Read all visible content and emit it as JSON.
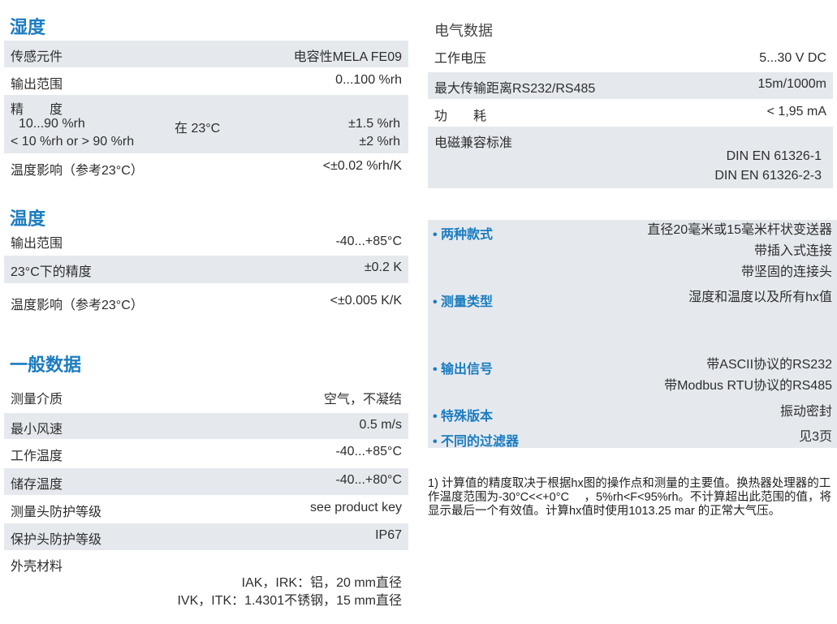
{
  "humidity": {
    "title": "湿度",
    "rows": [
      {
        "label": "传感元件",
        "value": "电容性MELA FE09"
      },
      {
        "label": "输出范围",
        "value": "0...100 %rh"
      },
      {
        "label": "精　　度",
        "sub": [
          {
            "range": "10...90 %rh",
            "cond": "在 23°C",
            "value": "±1.5 %rh"
          },
          {
            "range": "< 10 %rh or > 90 %rh",
            "cond": "",
            "value": "±2 %rh"
          }
        ]
      },
      {
        "label": "温度影响（参考23°C）",
        "value": "<±0.02 %rh/K"
      }
    ]
  },
  "temperature": {
    "title": "温度",
    "rows": [
      {
        "label": "输出范围",
        "value": "-40...+85°C"
      },
      {
        "label": "23°C下的精度",
        "value": "±0.2 K"
      },
      {
        "label": "温度影响（参考23°C）",
        "value": "<±0.005 K/K"
      }
    ]
  },
  "general": {
    "title": "一般数据",
    "rows": [
      {
        "label": "测量介质",
        "value": "空气，不凝结"
      },
      {
        "label": "最小风速",
        "value": "0.5 m/s"
      },
      {
        "label": "工作温度",
        "value": "-40...+85°C"
      },
      {
        "label": "储存温度",
        "value": "-40...+80°C"
      },
      {
        "label": "测量头防护等级",
        "value": "see product key"
      },
      {
        "label": "保护头防护等级",
        "value": "IP67"
      },
      {
        "label": "外壳材料",
        "values": [
          "IAK，IRK：铝，20 mm直径",
          "IVK，ITK：1.4301不锈钢，15 mm直径"
        ]
      }
    ]
  },
  "electrical": {
    "title": "电气数据",
    "rows": [
      {
        "label": "工作电压",
        "value": "5...30 V DC"
      },
      {
        "label": "最大传输距离RS232/RS485",
        "value": "15m/1000m"
      },
      {
        "label": "功　　耗",
        "value": "< 1,95 mA"
      },
      {
        "label": "电磁兼容标准",
        "values": [
          "DIN EN 61326-1",
          "DIN EN 61326-2-3"
        ]
      }
    ]
  },
  "features": [
    {
      "label": "• 两种款式",
      "values": [
        "直径20毫米或15毫米杆状变送器",
        "带插入式连接",
        "带坚固的连接头"
      ]
    },
    {
      "label": "• 测量类型",
      "values": [
        "湿度和温度以及所有hx值"
      ]
    },
    {
      "label": "• 输出信号",
      "values": [
        "带ASCII协议的RS232",
        "带Modbus RTU协议的RS485"
      ]
    },
    {
      "label": "• 特殊版本",
      "values": [
        "振动密封"
      ]
    },
    {
      "label": "• 不同的过滤器",
      "values": [
        "见3页"
      ]
    }
  ],
  "footnote": "1) 计算值的精度取决于根据hx图的操作点和测量的主要值。换热器处理器的工作温度范围为-30°C<<+0°C　 ，5%rh<F<95%rh。不计算超出此范围的值，将显示最后一个有效值。计算hx值时使用1013.25 mar 的正常大气压。"
}
